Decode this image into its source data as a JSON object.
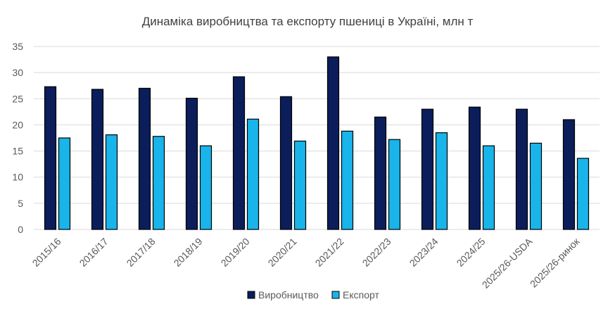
{
  "chart_data": {
    "type": "bar",
    "title": "Динаміка виробництва та експорту пшениці в Україні, млн т",
    "xlabel": "",
    "ylabel": "",
    "categories": [
      "2015/16",
      "2016/17",
      "2017/18",
      "2018/19",
      "2019/20",
      "2020/21",
      "2021/22",
      "2022/23",
      "2023/24",
      "2024/25",
      "2025/26-USDA",
      "2025/26-ринок"
    ],
    "series": [
      {
        "name": "Виробництво",
        "color": "#0b1e5b",
        "values": [
          27.3,
          26.8,
          27.0,
          25.1,
          29.2,
          25.4,
          33.0,
          21.5,
          23.0,
          23.4,
          23.0,
          21.0
        ]
      },
      {
        "name": "Експорт",
        "color": "#19b4ea",
        "values": [
          17.5,
          18.1,
          17.8,
          16.0,
          21.1,
          16.9,
          18.8,
          17.2,
          18.5,
          16.0,
          16.5,
          13.6
        ]
      }
    ],
    "ylim": [
      0,
      35
    ],
    "yticks": [
      0,
      5,
      10,
      15,
      20,
      25,
      30,
      35
    ],
    "grid": true,
    "legend_position": "bottom"
  }
}
